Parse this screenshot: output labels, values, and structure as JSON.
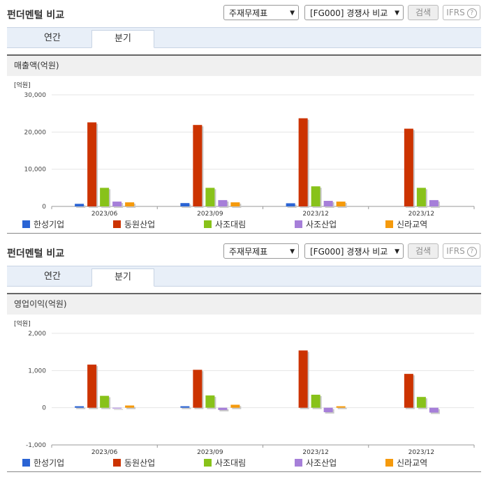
{
  "panels": [
    {
      "title": "펀더멘털 비교",
      "select_report": "주재무제표",
      "select_compare": "[FG000] 경쟁사 비교",
      "search_label": "검색",
      "ifrs_label": "IFRS",
      "help_glyph": "?",
      "tabs": [
        "연간",
        "분기"
      ],
      "active_tab": 1,
      "chart_title": "매출액(억원)"
    },
    {
      "title": "펀더멘털 비교",
      "select_report": "주재무제표",
      "select_compare": "[FG000] 경쟁사 비교",
      "search_label": "검색",
      "ifrs_label": "IFRS",
      "help_glyph": "?",
      "tabs": [
        "연간",
        "분기"
      ],
      "active_tab": 1,
      "chart_title": "영업이익(억원)"
    }
  ],
  "colors": {
    "한성기업": "#2a64d4",
    "동원산업": "#cc3300",
    "사조대림": "#88c21a",
    "사조산업": "#a67fd9",
    "신라교역": "#f59a0c"
  },
  "chart_data": [
    {
      "type": "bar",
      "unit_label": "[억원]",
      "categories": [
        "2023/06",
        "2023/09",
        "2023/12",
        "2023/12"
      ],
      "ylim": [
        0,
        30000
      ],
      "yticks": [
        0,
        10000,
        20000,
        30000
      ],
      "ytick_labels": [
        "0",
        "10,000",
        "20,000",
        "30,000"
      ],
      "series": [
        {
          "name": "한성기업",
          "values": [
            700,
            900,
            850,
            null
          ]
        },
        {
          "name": "동원산업",
          "values": [
            22600,
            21900,
            23700,
            20900
          ]
        },
        {
          "name": "사조대림",
          "values": [
            5000,
            5000,
            5400,
            5000
          ]
        },
        {
          "name": "사조산업",
          "values": [
            1300,
            1700,
            1500,
            1700
          ]
        },
        {
          "name": "신라교역",
          "values": [
            1100,
            1100,
            1300,
            null
          ]
        }
      ]
    },
    {
      "type": "bar",
      "unit_label": "[억원]",
      "categories": [
        "2023/06",
        "2023/09",
        "2023/12",
        "2023/12"
      ],
      "ylim": [
        -1000,
        2000
      ],
      "yticks": [
        -1000,
        0,
        1000,
        2000
      ],
      "ytick_labels": [
        "-1,000",
        "0",
        "1,000",
        "2,000"
      ],
      "series": [
        {
          "name": "한성기업",
          "values": [
            40,
            40,
            null,
            null
          ]
        },
        {
          "name": "동원산업",
          "values": [
            1160,
            1020,
            1540,
            910
          ]
        },
        {
          "name": "사조대림",
          "values": [
            320,
            330,
            350,
            290
          ]
        },
        {
          "name": "사조산업",
          "values": [
            -20,
            -60,
            -120,
            -130
          ]
        },
        {
          "name": "신라교역",
          "values": [
            60,
            80,
            40,
            null
          ]
        }
      ]
    }
  ]
}
